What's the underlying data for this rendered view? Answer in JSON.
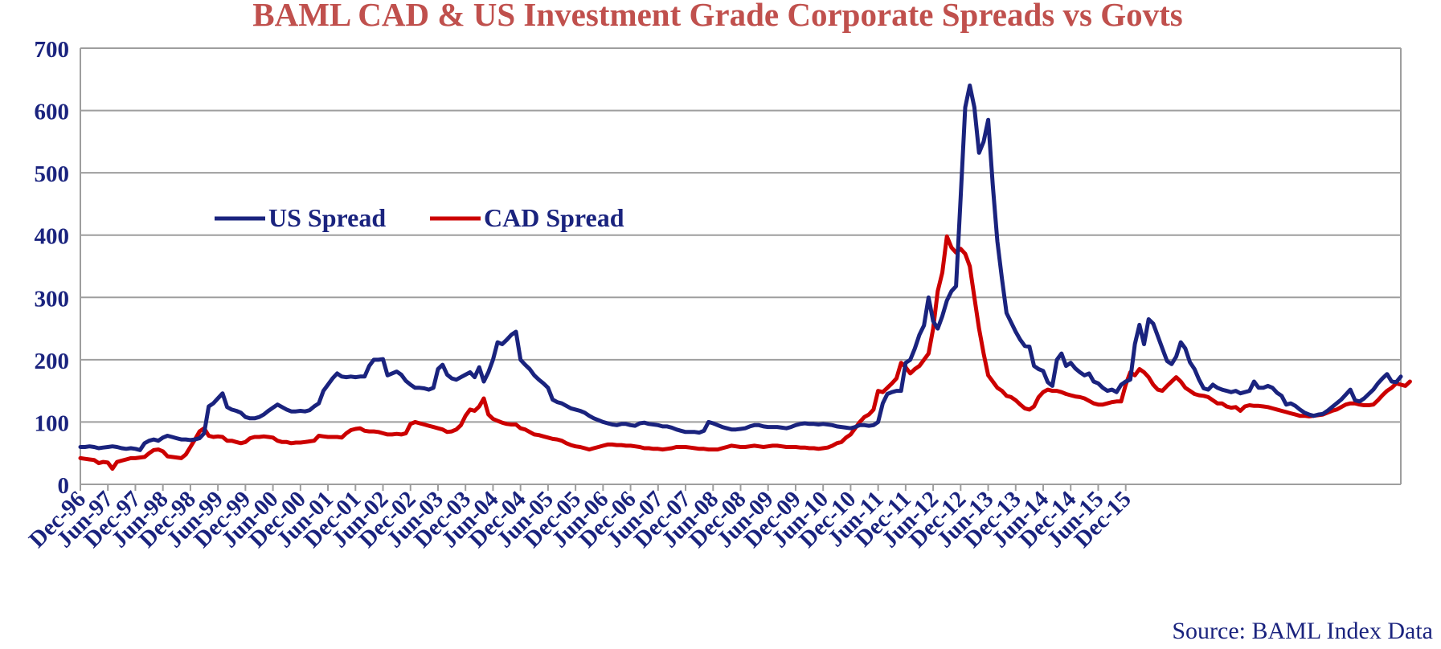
{
  "chart_data": {
    "type": "line",
    "title": "BAML CAD & US Investment Grade Corporate Spreads vs Govts",
    "xlabel": "",
    "ylabel": "",
    "source": "Source: BAML Index Data",
    "ylim": [
      0,
      700
    ],
    "yticks": [
      "0",
      "100",
      "200",
      "300",
      "400",
      "500",
      "600",
      "700"
    ],
    "x_start": "Dec-96",
    "x_end": "Dec-15",
    "x_step_months": 1,
    "xticks": [
      "Dec-96",
      "Jun-97",
      "Dec-97",
      "Jun-98",
      "Dec-98",
      "Jun-99",
      "Dec-99",
      "Jun-00",
      "Dec-00",
      "Jun-01",
      "Dec-01",
      "Jun-02",
      "Dec-02",
      "Jun-03",
      "Dec-03",
      "Jun-04",
      "Dec-04",
      "Jun-05",
      "Dec-05",
      "Jun-06",
      "Dec-06",
      "Jun-07",
      "Dec-07",
      "Jun-08",
      "Dec-08",
      "Jun-09",
      "Dec-09",
      "Jun-10",
      "Dec-10",
      "Jun-11",
      "Dec-11",
      "Jun-12",
      "Dec-12",
      "Jun-13",
      "Dec-13",
      "Jun-14",
      "Dec-14",
      "Jun-15",
      "Dec-15"
    ],
    "grid": true,
    "legend_position": "upper-left",
    "series": [
      {
        "name": "US Spread",
        "color": "#1a237e",
        "values": [
          60,
          60,
          61,
          60,
          58,
          59,
          60,
          61,
          60,
          58,
          57,
          58,
          57,
          55,
          66,
          70,
          72,
          70,
          75,
          78,
          76,
          74,
          72,
          72,
          71,
          72,
          74,
          82,
          125,
          130,
          138,
          146,
          124,
          120,
          118,
          115,
          108,
          106,
          106,
          108,
          112,
          118,
          123,
          128,
          124,
          120,
          117,
          117,
          118,
          117,
          119,
          125,
          130,
          150,
          160,
          170,
          178,
          173,
          172,
          173,
          172,
          173,
          173,
          190,
          200,
          200,
          201,
          175,
          178,
          181,
          176,
          166,
          160,
          155,
          155,
          154,
          152,
          155,
          185,
          192,
          176,
          170,
          168,
          172,
          176,
          180,
          172,
          188,
          165,
          180,
          200,
          228,
          225,
          232,
          240,
          245,
          200,
          192,
          185,
          175,
          168,
          162,
          155,
          136,
          132,
          130,
          126,
          122,
          120,
          118,
          115,
          110,
          106,
          103,
          100,
          98,
          96,
          95,
          97,
          97,
          95,
          94,
          98,
          99,
          97,
          96,
          95,
          93,
          93,
          91,
          88,
          86,
          84,
          84,
          84,
          83,
          86,
          100,
          98,
          95,
          92,
          90,
          88,
          88,
          89,
          90,
          93,
          95,
          95,
          93,
          92,
          92,
          92,
          91,
          90,
          92,
          95,
          97,
          98,
          97,
          97,
          96,
          97,
          96,
          95,
          93,
          92,
          91,
          90,
          92,
          95,
          95,
          94,
          95,
          100,
          130,
          145,
          148,
          150,
          150,
          195,
          200,
          218,
          240,
          255,
          300,
          262,
          250,
          270,
          295,
          310,
          318,
          460,
          605,
          640,
          605,
          532,
          550,
          585,
          480,
          390,
          330,
          275,
          260,
          245,
          232,
          222,
          221,
          190,
          185,
          182,
          164,
          158,
          200,
          210,
          190,
          195,
          186,
          180,
          175,
          178,
          165,
          162,
          155,
          150,
          152,
          148,
          160,
          165,
          168,
          225,
          256,
          225,
          265,
          258,
          238,
          218,
          198,
          193,
          205,
          228,
          218,
          196,
          185,
          168,
          154,
          152,
          160,
          155,
          152,
          150,
          148,
          150,
          146,
          148,
          150,
          165,
          155,
          155,
          158,
          155,
          147,
          142,
          128,
          130,
          126,
          120,
          115,
          112,
          110,
          112,
          113,
          118,
          124,
          130,
          136,
          144,
          152,
          135,
          133,
          138,
          145,
          152,
          162,
          170,
          177,
          165,
          164,
          173
        ]
      },
      {
        "name": "CAD Spread",
        "color": "#cc0000",
        "values": [
          42,
          41,
          40,
          39,
          34,
          36,
          35,
          25,
          36,
          38,
          40,
          42,
          42,
          43,
          44,
          50,
          55,
          56,
          53,
          45,
          44,
          43,
          42,
          48,
          60,
          72,
          85,
          90,
          78,
          76,
          77,
          76,
          70,
          70,
          68,
          66,
          68,
          74,
          76,
          76,
          77,
          76,
          75,
          70,
          68,
          68,
          66,
          67,
          67,
          68,
          69,
          70,
          78,
          77,
          76,
          76,
          76,
          75,
          82,
          87,
          89,
          90,
          86,
          85,
          85,
          84,
          82,
          80,
          80,
          81,
          80,
          82,
          97,
          100,
          98,
          96,
          94,
          92,
          90,
          88,
          84,
          85,
          88,
          95,
          110,
          120,
          118,
          125,
          138,
          112,
          105,
          102,
          99,
          97,
          96,
          96,
          90,
          88,
          84,
          80,
          79,
          77,
          75,
          73,
          72,
          70,
          66,
          63,
          61,
          60,
          58,
          56,
          58,
          60,
          62,
          64,
          64,
          63,
          63,
          62,
          62,
          61,
          60,
          58,
          58,
          57,
          57,
          56,
          57,
          58,
          60,
          60,
          60,
          59,
          58,
          57,
          57,
          56,
          56,
          56,
          58,
          60,
          62,
          61,
          60,
          60,
          61,
          62,
          61,
          60,
          61,
          62,
          62,
          61,
          60,
          60,
          60,
          59,
          59,
          58,
          58,
          57,
          58,
          59,
          62,
          66,
          68,
          75,
          80,
          90,
          100,
          108,
          112,
          120,
          150,
          148,
          155,
          162,
          170,
          195,
          188,
          178,
          185,
          190,
          200,
          210,
          250,
          310,
          340,
          398,
          380,
          372,
          378,
          370,
          350,
          300,
          250,
          210,
          175,
          165,
          155,
          150,
          142,
          140,
          135,
          128,
          122,
          120,
          125,
          140,
          148,
          152,
          150,
          150,
          148,
          145,
          143,
          141,
          140,
          138,
          134,
          130,
          128,
          128,
          130,
          132,
          133,
          133,
          160,
          180,
          175,
          185,
          180,
          172,
          160,
          152,
          150,
          158,
          165,
          172,
          165,
          155,
          150,
          145,
          143,
          142,
          140,
          135,
          130,
          130,
          125,
          123,
          124,
          118,
          125,
          127,
          126,
          126,
          125,
          124,
          122,
          120,
          118,
          116,
          114,
          112,
          110,
          110,
          109,
          110,
          111,
          112,
          115,
          118,
          120,
          124,
          128,
          130,
          130,
          128,
          127,
          127,
          128,
          135,
          143,
          150,
          155,
          162,
          160,
          158,
          165
        ]
      }
    ]
  }
}
